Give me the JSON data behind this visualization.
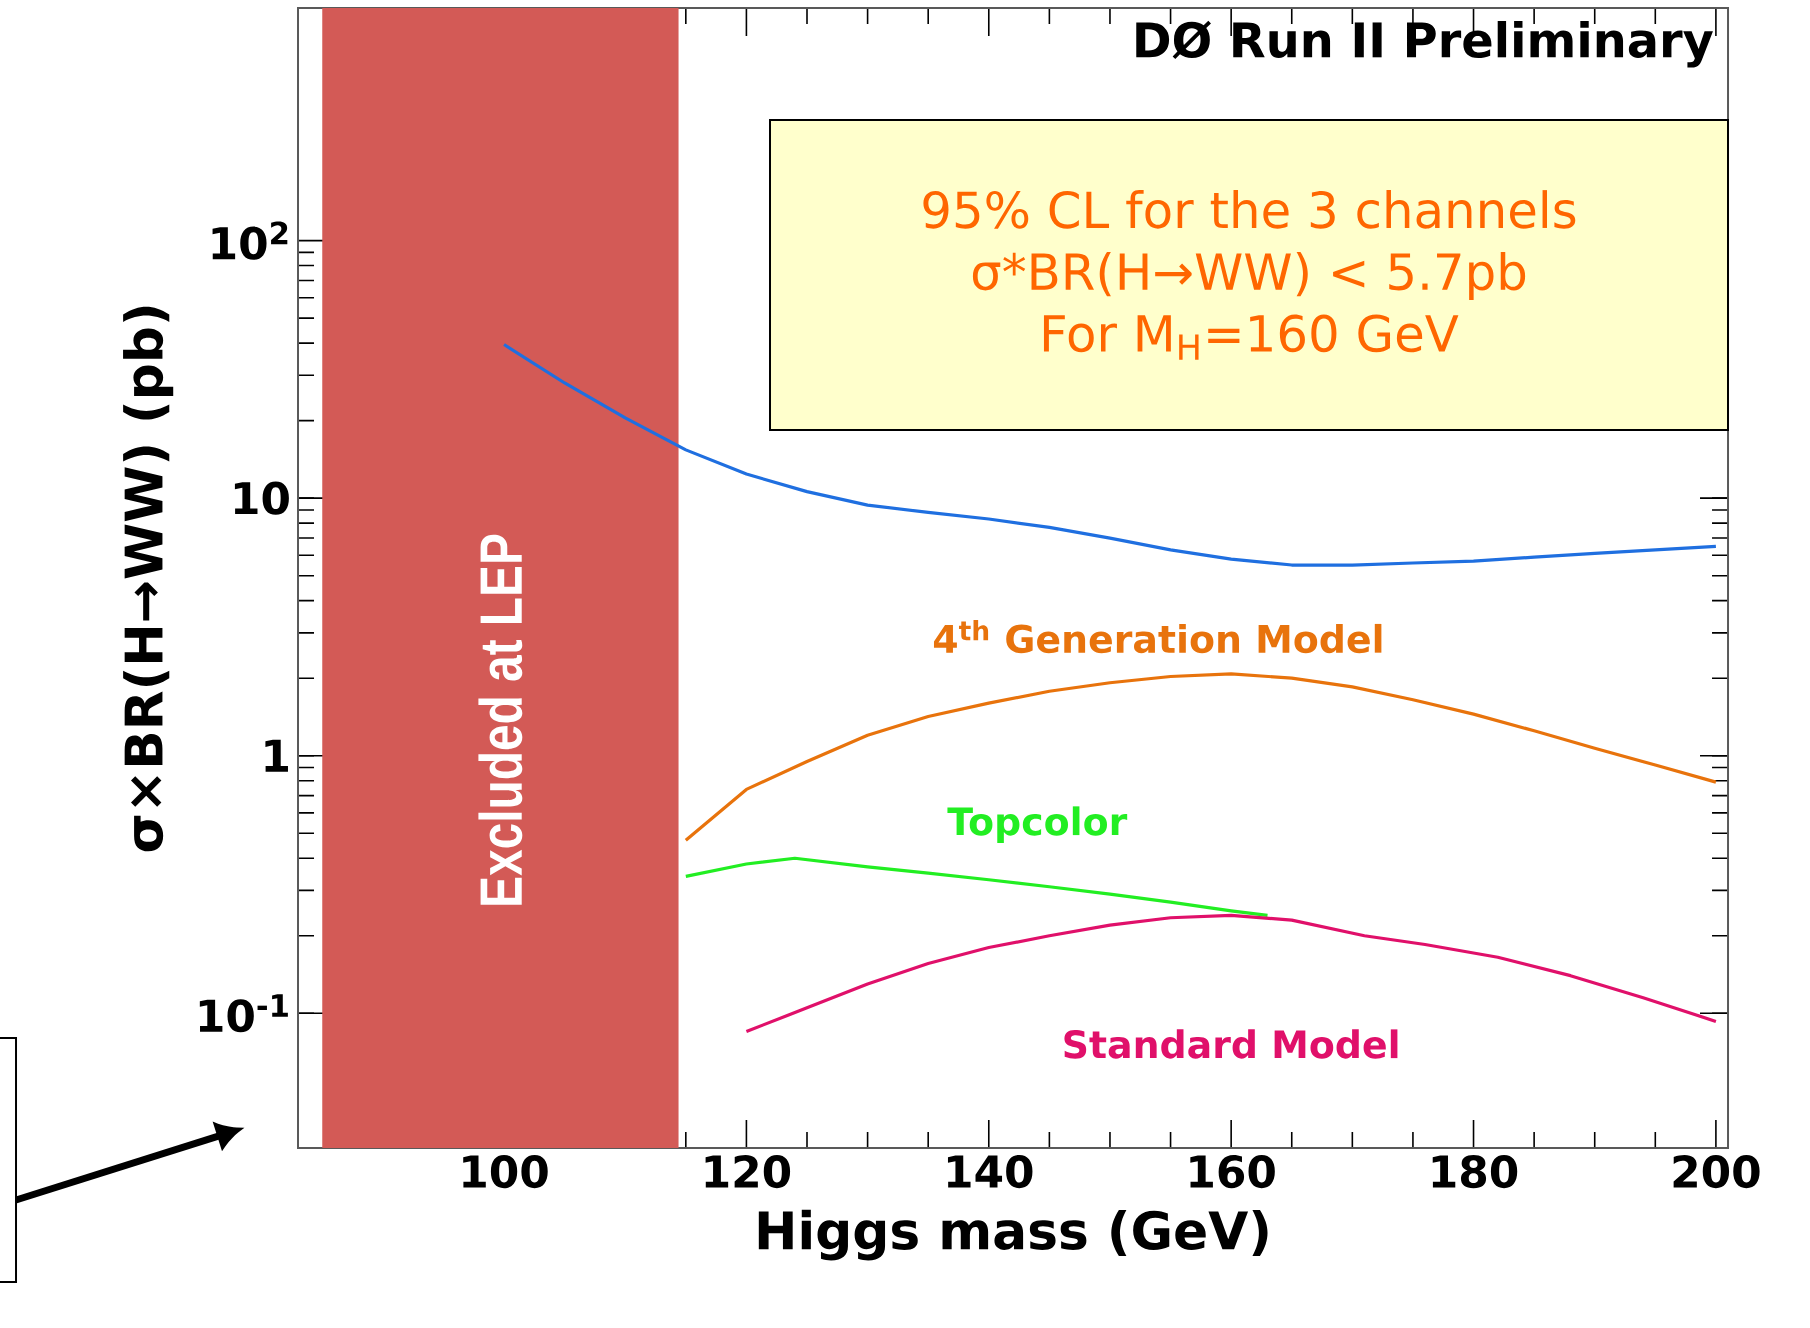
{
  "chart_data": {
    "type": "line",
    "xlabel": "Higgs mass (GeV)",
    "ylabel": "σ×BR(H→WW) (pb)",
    "log": "y",
    "xlim": [
      83,
      201
    ],
    "ylim": [
      0.03,
      800
    ],
    "xticks": [
      100,
      120,
      140,
      160,
      180,
      200
    ],
    "yticks": [
      {
        "value": 0.1,
        "label": "10$^{-1}$"
      },
      {
        "value": 1,
        "label": "1"
      },
      {
        "value": 10,
        "label": "10"
      },
      {
        "value": 100,
        "label": "10$^{2}$"
      }
    ],
    "legend": false,
    "grid": false,
    "series": [
      {
        "color": "#1f6fe0",
        "x": [
          100,
          105,
          110,
          115,
          120,
          125,
          130,
          135,
          140,
          145,
          150,
          155,
          160,
          165,
          170,
          175,
          180,
          185,
          190,
          195,
          200
        ],
        "values": [
          39.5,
          28,
          20.5,
          15.4,
          12.4,
          10.6,
          9.4,
          8.8,
          8.3,
          7.7,
          7.0,
          6.3,
          5.8,
          5.5,
          5.5,
          5.6,
          5.7,
          5.9,
          6.1,
          6.3,
          6.5
        ]
      },
      {
        "name": "4$^{th}$ Generation Model",
        "color": "#e8730c",
        "x": [
          115,
          120,
          125,
          130,
          135,
          140,
          145,
          150,
          155,
          160,
          165,
          170,
          175,
          180,
          185,
          190,
          195,
          200
        ],
        "values": [
          0.47,
          0.74,
          0.95,
          1.2,
          1.42,
          1.6,
          1.78,
          1.92,
          2.03,
          2.08,
          2.0,
          1.85,
          1.65,
          1.45,
          1.25,
          1.07,
          0.92,
          0.79
        ]
      },
      {
        "name": "Topcolor",
        "color": "#22ee22",
        "x": [
          115,
          120,
          124,
          130,
          135,
          140,
          145,
          150,
          155,
          160,
          163
        ],
        "values": [
          0.34,
          0.38,
          0.4,
          0.37,
          0.35,
          0.33,
          0.31,
          0.29,
          0.27,
          0.25,
          0.24
        ]
      },
      {
        "name": "Standard Model",
        "color": "#e0106a",
        "x": [
          120,
          125,
          130,
          135,
          140,
          145,
          150,
          155,
          160,
          165,
          171,
          176,
          182,
          188,
          194,
          200
        ],
        "values": [
          0.085,
          0.105,
          0.13,
          0.156,
          0.18,
          0.2,
          0.22,
          0.235,
          0.24,
          0.23,
          0.2,
          0.185,
          0.165,
          0.14,
          0.115,
          0.093
        ]
      }
    ],
    "bands": [
      {
        "axis": "x",
        "from": 85,
        "to": 114.4,
        "label": "Excluded at LEP",
        "color": "#d35a56"
      }
    ],
    "annotations": [
      "DØ Run II Preliminary",
      "95% CL for the 3 channels",
      "σ*BR(H→WW) < 5.7pb",
      "For M$_{H}$=160 GeV"
    ]
  }
}
